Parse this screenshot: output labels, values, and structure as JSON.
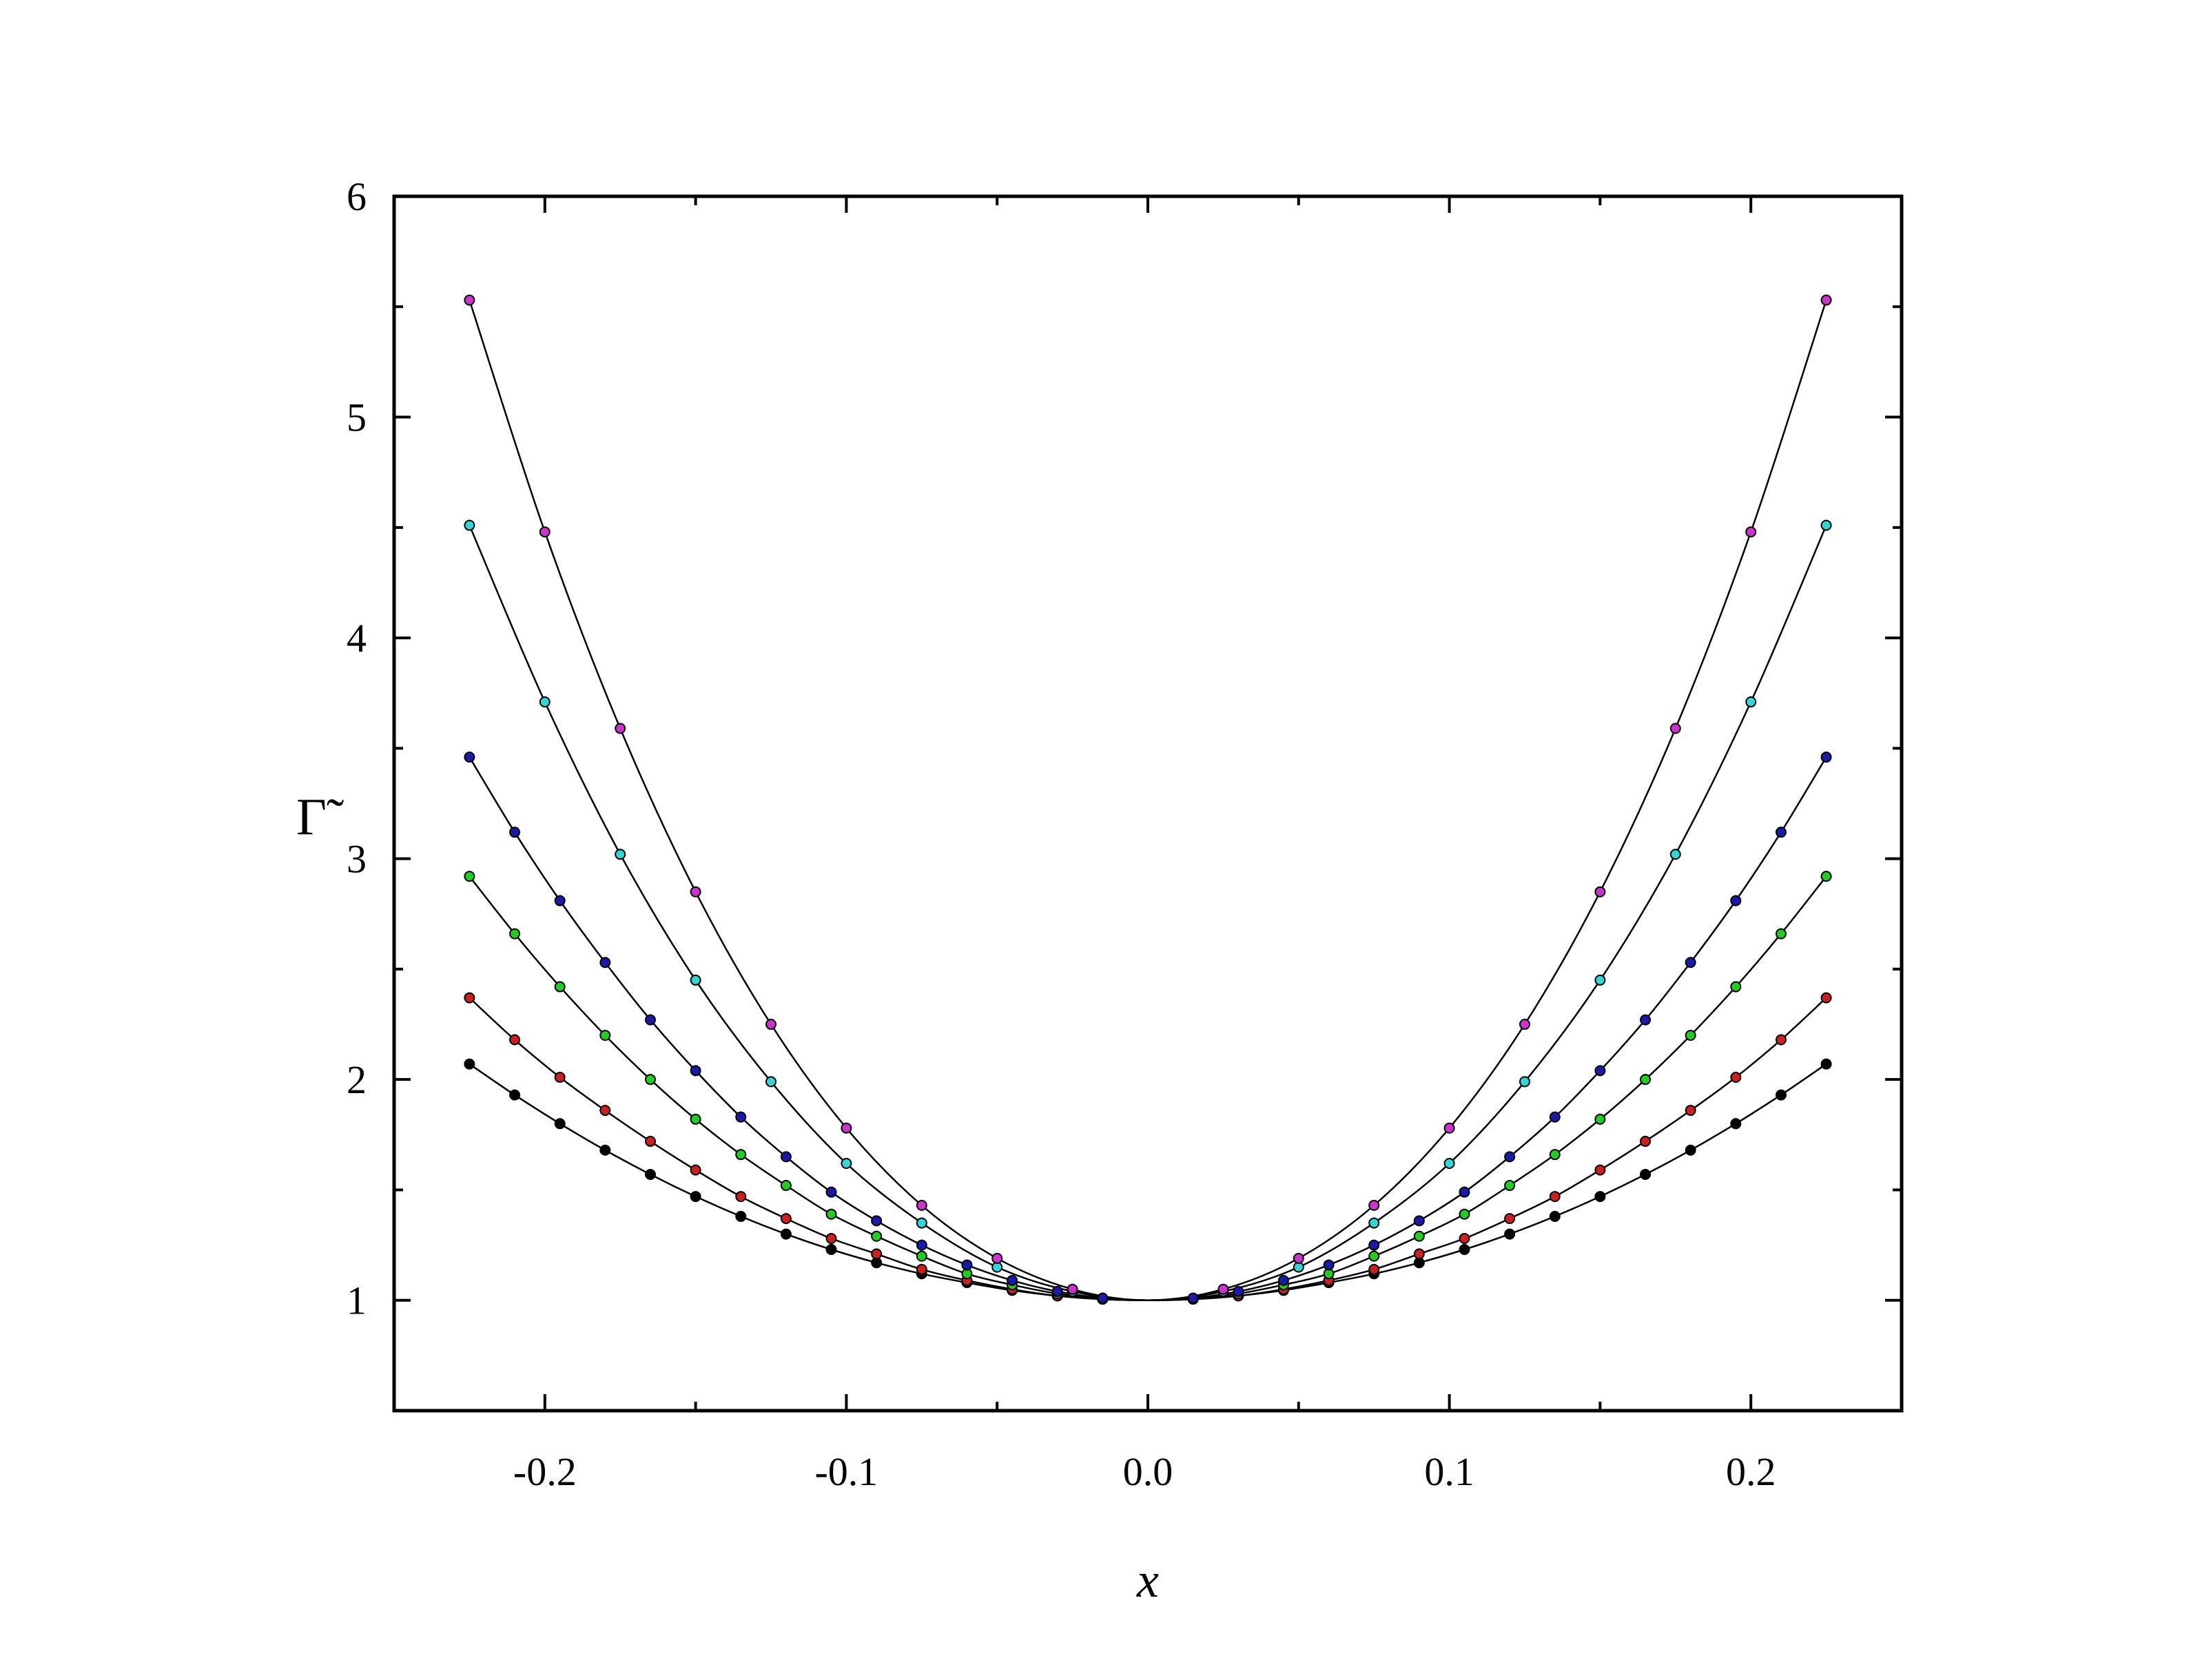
{
  "chart_data": {
    "type": "scatter",
    "xlabel": "x",
    "ylabel": "Γ̃",
    "xlim": [
      -0.25,
      0.25
    ],
    "ylim": [
      0.5,
      6
    ],
    "xticks": [
      -0.2,
      -0.1,
      0.0,
      0.1,
      0.2
    ],
    "xtick_labels": [
      "-0.2",
      "-0.1",
      "0.0",
      "0.1",
      "0.2"
    ],
    "yticks": [
      1,
      2,
      3,
      4,
      5,
      6
    ],
    "ytick_labels": [
      "1",
      "2",
      "3",
      "4",
      "5",
      "6"
    ],
    "grid": false,
    "curve_color": "#000000",
    "series": [
      {
        "color": "#000000",
        "points": [
          [
            -0.225,
            2.07
          ],
          [
            -0.21,
            1.93
          ],
          [
            -0.195,
            1.8
          ],
          [
            -0.18,
            1.68
          ],
          [
            -0.165,
            1.57
          ],
          [
            -0.15,
            1.47
          ],
          [
            -0.135,
            1.38
          ],
          [
            -0.12,
            1.3
          ],
          [
            -0.105,
            1.23
          ],
          [
            -0.09,
            1.17
          ],
          [
            -0.075,
            1.12
          ],
          [
            -0.06,
            1.08
          ],
          [
            -0.045,
            1.045
          ],
          [
            -0.03,
            1.02
          ],
          [
            -0.015,
            1.005
          ],
          [
            0.015,
            1.005
          ],
          [
            0.03,
            1.02
          ],
          [
            0.045,
            1.045
          ],
          [
            0.06,
            1.08
          ],
          [
            0.075,
            1.12
          ],
          [
            0.09,
            1.17
          ],
          [
            0.105,
            1.23
          ],
          [
            0.12,
            1.3
          ],
          [
            0.135,
            1.38
          ],
          [
            0.15,
            1.47
          ],
          [
            0.165,
            1.57
          ],
          [
            0.18,
            1.68
          ],
          [
            0.195,
            1.8
          ],
          [
            0.21,
            1.93
          ],
          [
            0.225,
            2.07
          ]
        ]
      },
      {
        "color": "#cc1f1f",
        "points": [
          [
            -0.225,
            2.37
          ],
          [
            -0.21,
            2.18
          ],
          [
            -0.195,
            2.01
          ],
          [
            -0.18,
            1.86
          ],
          [
            -0.165,
            1.72
          ],
          [
            -0.15,
            1.59
          ],
          [
            -0.135,
            1.47
          ],
          [
            -0.12,
            1.37
          ],
          [
            -0.105,
            1.28
          ],
          [
            -0.09,
            1.21
          ],
          [
            -0.075,
            1.14
          ],
          [
            -0.06,
            1.09
          ],
          [
            -0.045,
            1.05
          ],
          [
            -0.03,
            1.02
          ],
          [
            -0.015,
            1.005
          ],
          [
            0.015,
            1.005
          ],
          [
            0.03,
            1.02
          ],
          [
            0.045,
            1.05
          ],
          [
            0.06,
            1.09
          ],
          [
            0.075,
            1.14
          ],
          [
            0.09,
            1.21
          ],
          [
            0.105,
            1.28
          ],
          [
            0.12,
            1.37
          ],
          [
            0.135,
            1.47
          ],
          [
            0.15,
            1.59
          ],
          [
            0.165,
            1.72
          ],
          [
            0.18,
            1.86
          ],
          [
            0.195,
            2.01
          ],
          [
            0.21,
            2.18
          ],
          [
            0.225,
            2.37
          ]
        ]
      },
      {
        "color": "#22cc22",
        "points": [
          [
            -0.225,
            2.92
          ],
          [
            -0.21,
            2.66
          ],
          [
            -0.195,
            2.42
          ],
          [
            -0.18,
            2.2
          ],
          [
            -0.165,
            2.0
          ],
          [
            -0.15,
            1.82
          ],
          [
            -0.135,
            1.66
          ],
          [
            -0.12,
            1.52
          ],
          [
            -0.105,
            1.39
          ],
          [
            -0.09,
            1.29
          ],
          [
            -0.075,
            1.2
          ],
          [
            -0.06,
            1.12
          ],
          [
            -0.045,
            1.07
          ],
          [
            -0.03,
            1.03
          ],
          [
            -0.015,
            1.008
          ],
          [
            0.015,
            1.008
          ],
          [
            0.03,
            1.03
          ],
          [
            0.045,
            1.07
          ],
          [
            0.06,
            1.12
          ],
          [
            0.075,
            1.2
          ],
          [
            0.09,
            1.29
          ],
          [
            0.105,
            1.39
          ],
          [
            0.12,
            1.52
          ],
          [
            0.135,
            1.66
          ],
          [
            0.15,
            1.82
          ],
          [
            0.165,
            2.0
          ],
          [
            0.18,
            2.2
          ],
          [
            0.195,
            2.42
          ],
          [
            0.21,
            2.66
          ],
          [
            0.225,
            2.92
          ]
        ]
      },
      {
        "color": "#1a1aaa",
        "points": [
          [
            -0.225,
            3.46
          ],
          [
            -0.21,
            3.12
          ],
          [
            -0.195,
            2.81
          ],
          [
            -0.18,
            2.53
          ],
          [
            -0.165,
            2.27
          ],
          [
            -0.15,
            2.04
          ],
          [
            -0.135,
            1.83
          ],
          [
            -0.12,
            1.65
          ],
          [
            -0.105,
            1.49
          ],
          [
            -0.09,
            1.36
          ],
          [
            -0.075,
            1.25
          ],
          [
            -0.06,
            1.16
          ],
          [
            -0.045,
            1.09
          ],
          [
            -0.03,
            1.04
          ],
          [
            -0.015,
            1.01
          ],
          [
            0.015,
            1.01
          ],
          [
            0.03,
            1.04
          ],
          [
            0.045,
            1.09
          ],
          [
            0.06,
            1.16
          ],
          [
            0.075,
            1.25
          ],
          [
            0.09,
            1.36
          ],
          [
            0.105,
            1.49
          ],
          [
            0.12,
            1.65
          ],
          [
            0.135,
            1.83
          ],
          [
            0.15,
            2.04
          ],
          [
            0.165,
            2.27
          ],
          [
            0.18,
            2.53
          ],
          [
            0.195,
            2.81
          ],
          [
            0.21,
            3.12
          ],
          [
            0.225,
            3.46
          ]
        ]
      },
      {
        "color": "#33d6d6",
        "points": [
          [
            -0.225,
            4.51
          ],
          [
            -0.2,
            3.71
          ],
          [
            -0.175,
            3.02
          ],
          [
            -0.15,
            2.45
          ],
          [
            -0.125,
            1.99
          ],
          [
            -0.1,
            1.62
          ],
          [
            -0.075,
            1.35
          ],
          [
            -0.05,
            1.15
          ],
          [
            -0.025,
            1.04
          ],
          [
            0.025,
            1.04
          ],
          [
            0.05,
            1.15
          ],
          [
            0.075,
            1.35
          ],
          [
            0.1,
            1.62
          ],
          [
            0.125,
            1.99
          ],
          [
            0.15,
            2.45
          ],
          [
            0.175,
            3.02
          ],
          [
            0.2,
            3.71
          ],
          [
            0.225,
            4.51
          ]
        ]
      },
      {
        "color": "#cc33cc",
        "points": [
          [
            -0.225,
            5.53
          ],
          [
            -0.2,
            4.48
          ],
          [
            -0.175,
            3.59
          ],
          [
            -0.15,
            2.85
          ],
          [
            -0.125,
            2.25
          ],
          [
            -0.1,
            1.78
          ],
          [
            -0.075,
            1.43
          ],
          [
            -0.05,
            1.19
          ],
          [
            -0.025,
            1.05
          ],
          [
            0.025,
            1.05
          ],
          [
            0.05,
            1.19
          ],
          [
            0.075,
            1.43
          ],
          [
            0.1,
            1.78
          ],
          [
            0.125,
            2.25
          ],
          [
            0.15,
            2.85
          ],
          [
            0.175,
            3.59
          ],
          [
            0.2,
            4.48
          ],
          [
            0.225,
            5.53
          ]
        ]
      }
    ]
  }
}
